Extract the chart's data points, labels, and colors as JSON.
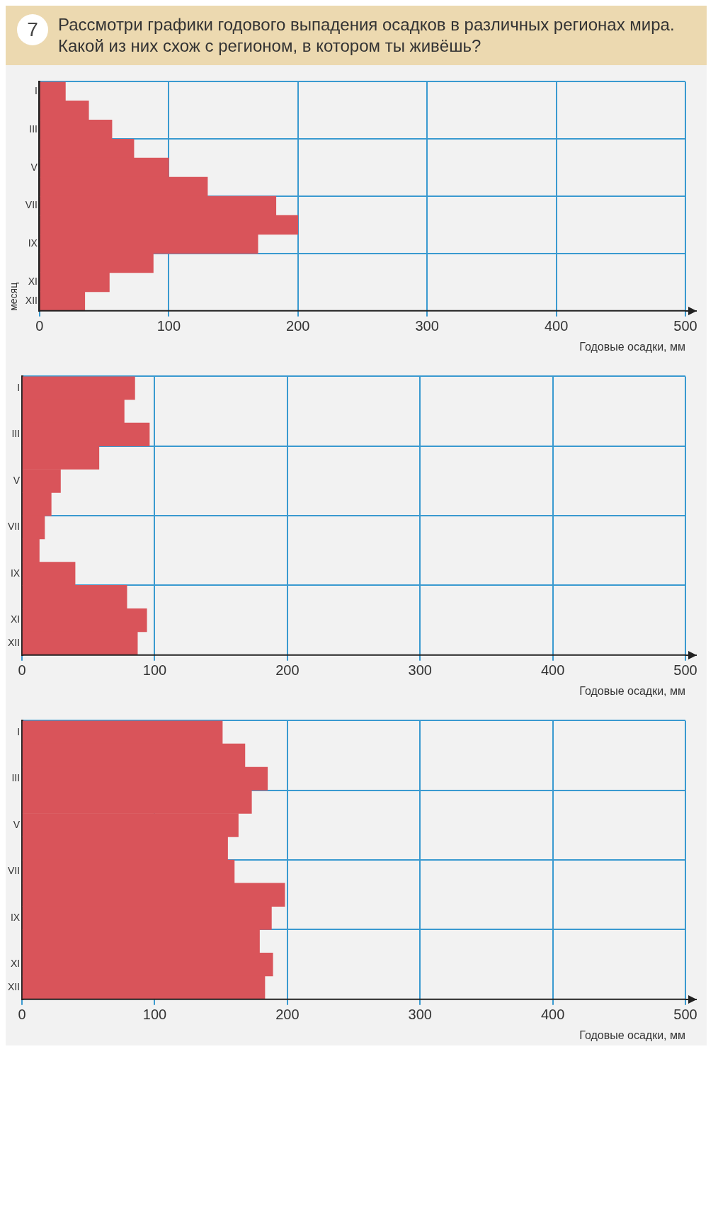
{
  "chart_data": [
    {
      "type": "bar",
      "orientation": "horizontal",
      "title": "Рассмотри графики годового выпадения осадков в различных регионах мира. Какой из них схож с регионом, в котором ты живёшь?",
      "annotations": [
        "7"
      ],
      "xlabel": "Годовые осадки, мм",
      "ylabel": "месяц",
      "categories": [
        "I",
        null,
        "III",
        null,
        "V",
        null,
        "VII",
        null,
        "IX",
        null,
        "XI",
        "XII"
      ],
      "values": [
        20,
        38,
        56,
        73,
        100,
        130,
        183,
        200,
        169,
        88,
        54,
        35
      ],
      "color": "#d9545a",
      "xlim": [
        0,
        500
      ],
      "xticks": [
        0,
        100,
        200,
        300,
        400,
        500
      ],
      "grid": true,
      "legend": false
    },
    {
      "type": "bar",
      "orientation": "horizontal",
      "xlabel": "Годовые осадки, мм",
      "categories": [
        "I",
        null,
        "III",
        null,
        "V",
        null,
        "VII",
        null,
        "IX",
        null,
        "XI",
        "XII"
      ],
      "values": [
        85,
        77,
        96,
        58,
        29,
        22,
        17,
        13,
        40,
        79,
        94,
        87
      ],
      "color": "#d9545a",
      "xlim": [
        0,
        500
      ],
      "xticks": [
        0,
        100,
        200,
        300,
        400,
        500
      ],
      "grid": true,
      "legend": false
    },
    {
      "type": "bar",
      "orientation": "horizontal",
      "xlabel": "Годовые осадки, мм",
      "categories": [
        "I",
        null,
        "III",
        null,
        "V",
        null,
        "VII",
        null,
        "IX",
        null,
        "XI",
        "XII"
      ],
      "values": [
        151,
        168,
        185,
        173,
        163,
        155,
        160,
        198,
        188,
        179,
        189,
        183
      ],
      "color": "#d9545a",
      "xlim": [
        0,
        500
      ],
      "xticks": [
        0,
        100,
        200,
        300,
        400,
        500
      ],
      "grid": true,
      "legend": false
    }
  ]
}
